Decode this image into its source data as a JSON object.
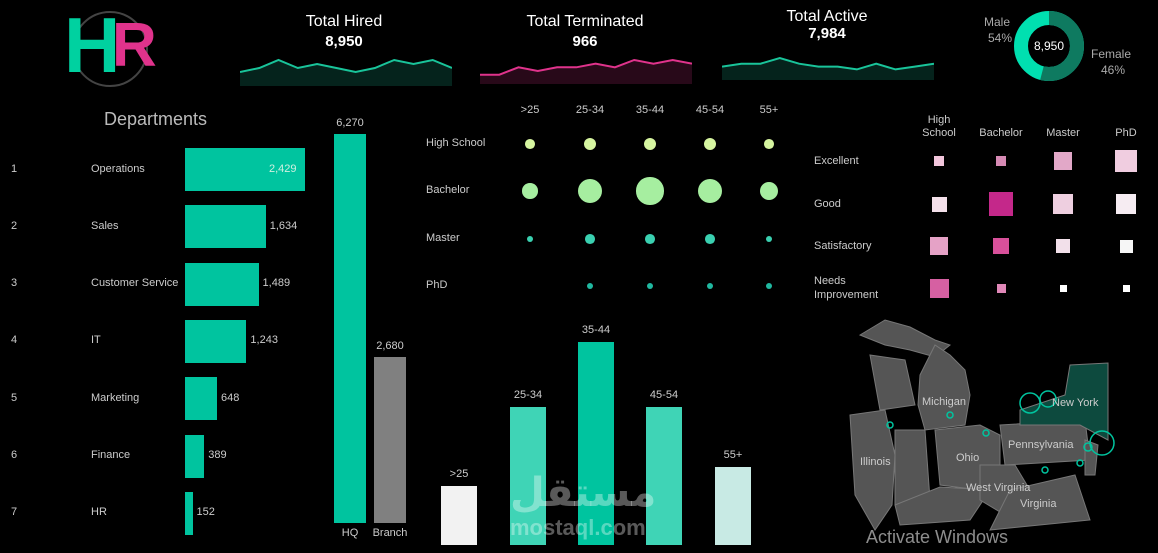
{
  "logo": {
    "letter1": "H",
    "letter2": "R"
  },
  "kpis": {
    "hired": {
      "title": "Total Hired",
      "value": "8,950"
    },
    "terminated": {
      "title": "Total Terminated",
      "value": "966"
    },
    "active": {
      "title": "Total Active",
      "value": "7,984"
    }
  },
  "gender": {
    "total": "8,950",
    "male_label": "Male",
    "male_pct": "54%",
    "male_value": 54,
    "female_label": "Female",
    "female_pct": "46%",
    "female_value": 46
  },
  "colors": {
    "teal": "#00c49f",
    "grey": "#808080",
    "pink": "#d63384",
    "green": "#90ee90",
    "light": "#f2f2f2"
  },
  "watermark": {
    "arabic": "مستقل",
    "latin": "mostaql.com"
  },
  "activate_text": "Activate Windows",
  "chart_data": [
    {
      "id": "departments",
      "type": "bar",
      "title": "Departments",
      "orientation": "horizontal",
      "ranks": [
        "1",
        "2",
        "3",
        "4",
        "5",
        "6",
        "7"
      ],
      "categories": [
        "Operations",
        "Sales",
        "Customer Service",
        "IT",
        "Marketing",
        "Finance",
        "HR"
      ],
      "values": [
        2429,
        1634,
        1489,
        1243,
        648,
        389,
        152
      ],
      "value_labels": [
        "2,429",
        "1,634",
        "1,489",
        "1,243",
        "648",
        "389",
        "152"
      ]
    },
    {
      "id": "location",
      "type": "bar",
      "categories": [
        "HQ",
        "Branch"
      ],
      "values": [
        6270,
        2680
      ],
      "value_labels": [
        "6,270",
        "2,680"
      ]
    },
    {
      "id": "hired_trend",
      "type": "area",
      "values": [
        3,
        4,
        6,
        4,
        5,
        4,
        3,
        4,
        6,
        5,
        6,
        4
      ]
    },
    {
      "id": "terminated_trend",
      "type": "area",
      "values": [
        2,
        2,
        4,
        3,
        4,
        4,
        5,
        4,
        6,
        5,
        6,
        5
      ]
    },
    {
      "id": "active_trend",
      "type": "area",
      "values": [
        4,
        5,
        5,
        7,
        5,
        4,
        4,
        3,
        5,
        3,
        4,
        5
      ]
    },
    {
      "id": "age_education",
      "type": "scatter",
      "columns": [
        ">25",
        "25-34",
        "35-44",
        "45-54",
        "55+"
      ],
      "rows": [
        "High School",
        "Bachelor",
        "Master",
        "PhD"
      ],
      "values": [
        [
          2,
          3,
          3,
          3,
          2
        ],
        [
          4,
          7,
          8,
          7,
          5
        ],
        [
          1,
          2,
          2,
          2,
          1
        ],
        [
          0,
          1,
          1,
          1,
          1
        ]
      ]
    },
    {
      "id": "age_groups",
      "type": "bar",
      "categories": [
        ">25",
        "25-34",
        "35-44",
        "45-54",
        "55+"
      ],
      "values": [
        57,
        133,
        195,
        133,
        75
      ]
    },
    {
      "id": "rating_education",
      "type": "heatmap",
      "columns": [
        "High School",
        "Bachelor",
        "Master",
        "PhD"
      ],
      "rows": [
        "Excellent",
        "Good",
        "Satisfactory",
        "Needs Improvement"
      ],
      "values": [
        [
          2,
          2,
          3,
          4
        ],
        [
          3,
          5,
          4,
          4
        ],
        [
          3,
          3,
          2,
          2
        ],
        [
          3,
          1,
          1,
          1
        ]
      ]
    },
    {
      "id": "map",
      "type": "map",
      "labels": [
        "Michigan",
        "New York",
        "Illinois",
        "Ohio",
        "Pennsylvania",
        "West Virginia",
        "Virginia"
      ]
    }
  ]
}
